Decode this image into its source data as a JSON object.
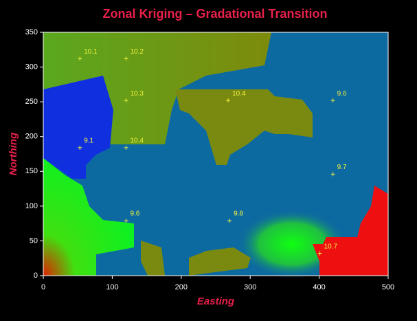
{
  "chart_data": {
    "type": "scatter",
    "title": "Zonal Kriging – Gradational Transition",
    "x_label": "Easting",
    "y_label": "Northing",
    "x": [
      53,
      120,
      120,
      268,
      420,
      53,
      120,
      420,
      120,
      270,
      401
    ],
    "values": [
      312,
      312,
      252,
      252,
      252,
      184,
      184,
      146,
      79,
      79,
      32
    ],
    "z": [
      10.1,
      10.2,
      10.3,
      10.4,
      9.6,
      9.1,
      10.4,
      9.7,
      9.6,
      9.8,
      10.7
    ],
    "color": "#f0f040",
    "xlim": [
      0,
      500
    ],
    "ylim": [
      0,
      350
    ],
    "xticks": [
      0,
      100,
      200,
      300,
      400,
      500
    ],
    "yticks": [
      0,
      50,
      100,
      150,
      200,
      250,
      300,
      350
    ]
  }
}
